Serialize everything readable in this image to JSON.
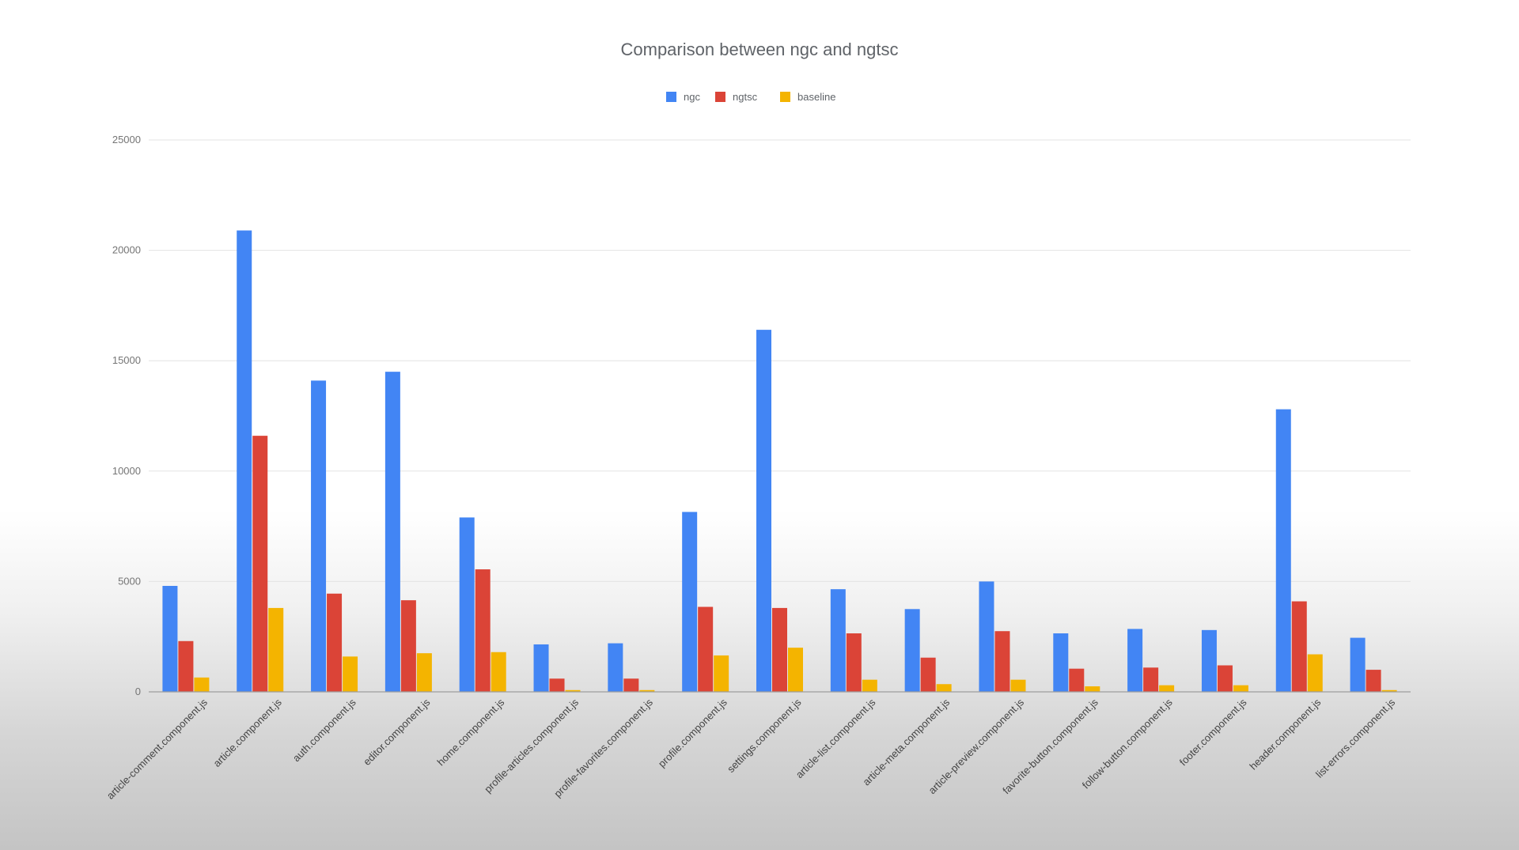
{
  "chart_data": {
    "type": "bar",
    "title": "Comparison between ngc and ngtsc",
    "xlabel": "",
    "ylabel": "",
    "ylim": [
      0,
      25000
    ],
    "yticks": [
      0,
      5000,
      10000,
      15000,
      20000,
      25000
    ],
    "grid": true,
    "legend_position": "top",
    "categories": [
      "article-comment.component.js",
      "article.component.js",
      "auth.component.js",
      "editor.component.js",
      "home.component.js",
      "profile-articles.component.js",
      "profile-favorites.component.js",
      "profile.component.js",
      "settings.component.js",
      "article-list.component.js",
      "article-meta.component.js",
      "article-preview.component.js",
      "favorite-button.component.js",
      "follow-button.component.js",
      "footer.component.js",
      "header.component.js",
      "list-errors.component.js"
    ],
    "series": [
      {
        "name": "ngc",
        "color": "#4285f4",
        "values": [
          4800,
          20900,
          14100,
          14500,
          7900,
          2150,
          2200,
          8150,
          16400,
          4650,
          3750,
          5000,
          2650,
          2850,
          2800,
          12800,
          2450
        ]
      },
      {
        "name": "ngtsc",
        "color": "#db4437",
        "values": [
          2300,
          11600,
          4450,
          4150,
          5550,
          600,
          600,
          3850,
          3800,
          2650,
          1550,
          2750,
          1050,
          1100,
          1200,
          4100,
          1000
        ]
      },
      {
        "name": "baseline",
        "color": "#f4b400",
        "values": [
          650,
          3800,
          1600,
          1750,
          1800,
          80,
          80,
          1650,
          2000,
          550,
          350,
          550,
          250,
          300,
          300,
          1700,
          80
        ]
      }
    ]
  }
}
